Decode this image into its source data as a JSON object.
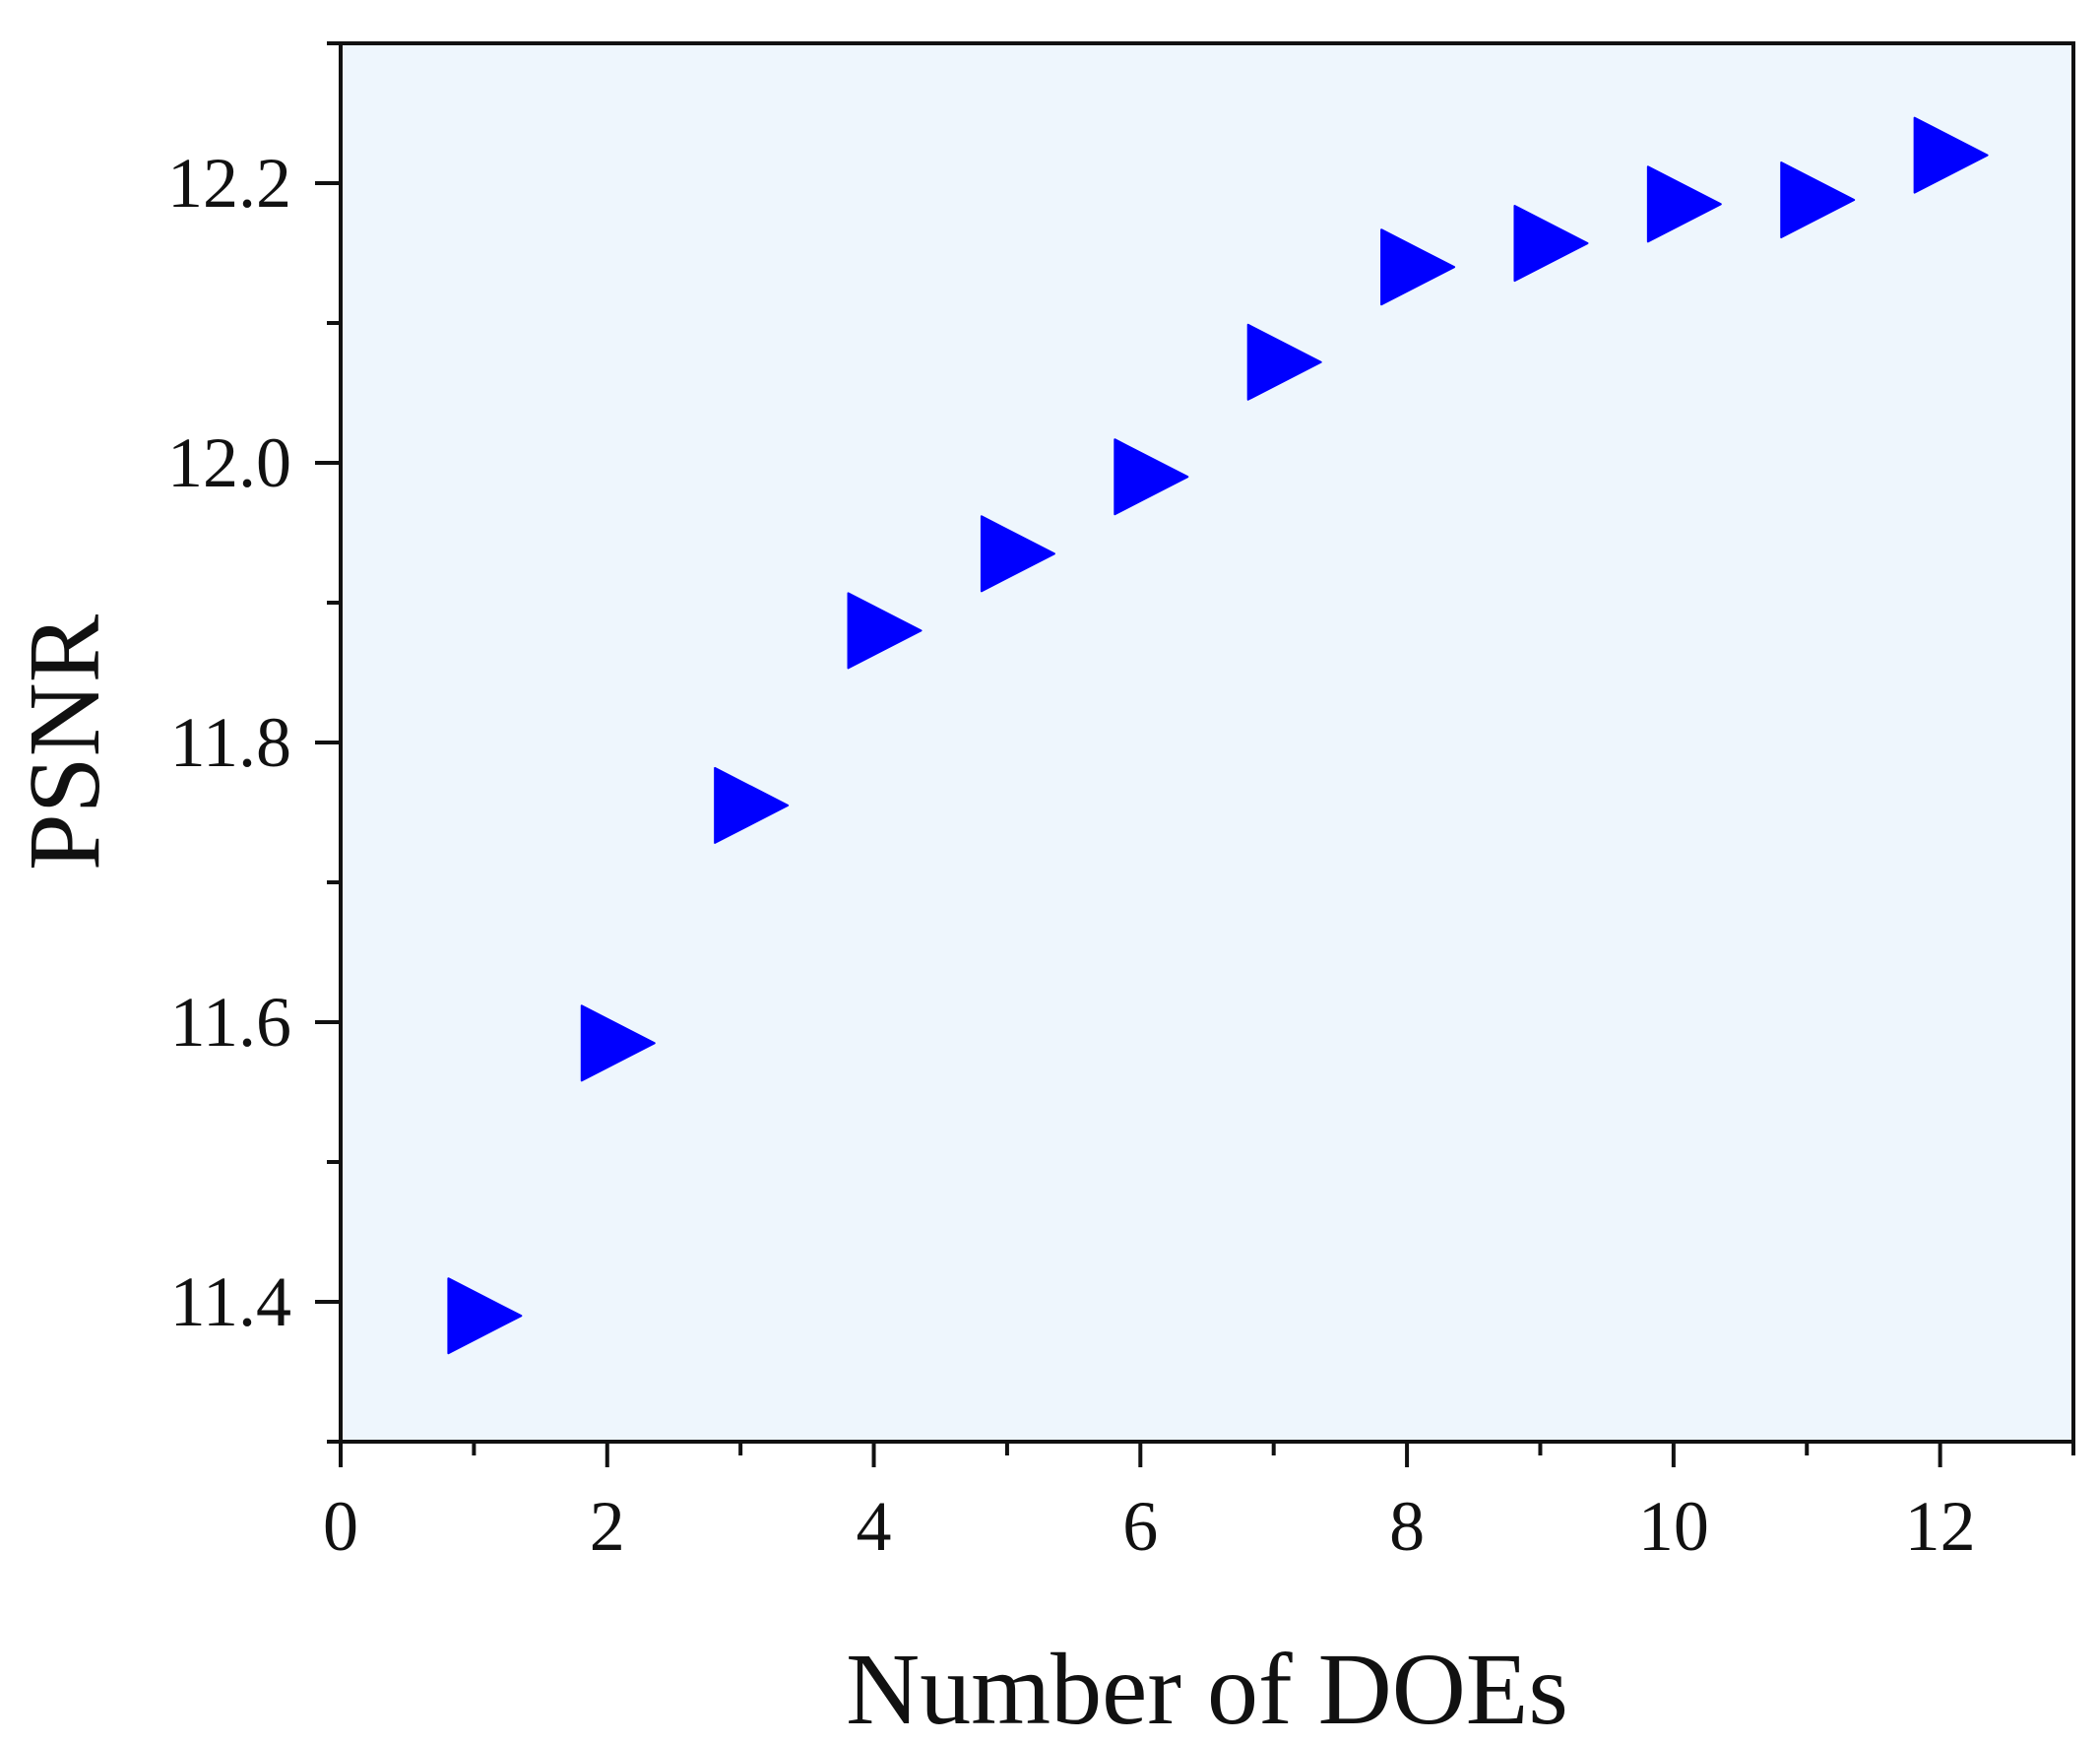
{
  "chart_data": {
    "type": "scatter",
    "title": "",
    "xlabel": "Number of DOEs",
    "ylabel": "PSNR",
    "xlim": [
      0,
      13
    ],
    "ylim": [
      11.3,
      12.3
    ],
    "xticks": [
      0,
      2,
      4,
      6,
      8,
      10,
      12
    ],
    "xtick_labels": [
      "0",
      "2",
      "4",
      "6",
      "8",
      "10",
      "12"
    ],
    "xminor_ticks": [
      1,
      3,
      5,
      7,
      9,
      11,
      13
    ],
    "yticks": [
      11.4,
      11.6,
      11.8,
      12.0,
      12.2
    ],
    "ytick_labels": [
      "11.4",
      "11.6",
      "11.8",
      "12.0",
      "12.2"
    ],
    "yminor_ticks": [
      11.3,
      11.5,
      11.7,
      11.9,
      12.1,
      12.3
    ],
    "grid": false,
    "legend": "none",
    "marker": "triangle-right",
    "colors": {
      "marker": "#0000ff",
      "plot_background": "#eef6fd",
      "axis": "#111111"
    },
    "series": [
      {
        "x": [
          1,
          2,
          3,
          4,
          5,
          6,
          7,
          8,
          9,
          10,
          11,
          12
        ],
        "values": [
          11.39,
          11.585,
          11.755,
          11.88,
          11.935,
          11.99,
          12.072,
          12.14,
          12.157,
          12.185,
          12.188,
          12.22
        ]
      }
    ]
  }
}
